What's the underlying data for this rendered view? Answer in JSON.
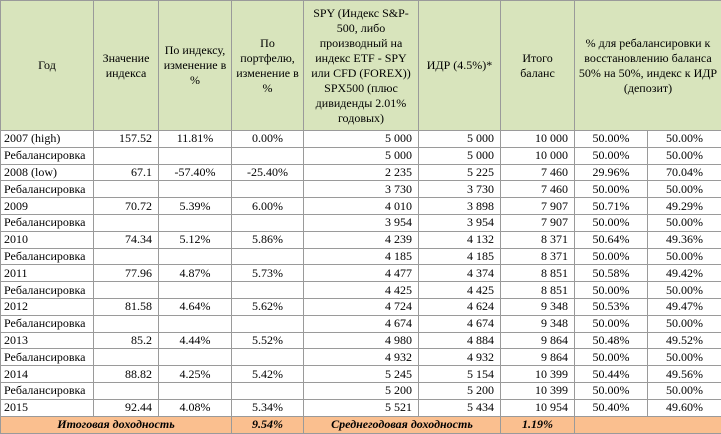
{
  "table": {
    "header": [
      "Год",
      "Значение индекса",
      "По индексу, изменение в %",
      "По портфелю, изменение в %",
      "SPY (Индекс S&P-500, либо производный на индекс ETF - SPY или CFD (FOREX)) SPX500 (плюс дивиденды 2.01% годовых)",
      "ИДР (4.5%)*",
      "Итого баланс",
      "% для ребалансировки к восстановлению баланса 50% на 50%, индекс к ИДР (депозит)"
    ],
    "rows": [
      [
        "2007 (high)",
        "157.52",
        "11.81%",
        "0.00%",
        "5 000",
        "5 000",
        "10 000",
        "50.00%",
        "50.00%"
      ],
      [
        "Ребалансировка",
        null,
        null,
        null,
        "5 000",
        "5 000",
        "10 000",
        "50.00%",
        "50.00%"
      ],
      [
        "2008 (low)",
        "67.1",
        "-57.40%",
        "-25.40%",
        "2 235",
        "5 225",
        "7 460",
        "29.96%",
        "70.04%"
      ],
      [
        "Ребалансировка",
        null,
        null,
        null,
        "3 730",
        "3 730",
        "7 460",
        "50.00%",
        "50.00%"
      ],
      [
        "2009",
        "70.72",
        "5.39%",
        "6.00%",
        "4 010",
        "3 898",
        "7 907",
        "50.71%",
        "49.29%"
      ],
      [
        "Ребалансировка",
        null,
        null,
        null,
        "3 954",
        "3 954",
        "7 907",
        "50.00%",
        "50.00%"
      ],
      [
        "2010",
        "74.34",
        "5.12%",
        "5.86%",
        "4 239",
        "4 132",
        "8 371",
        "50.64%",
        "49.36%"
      ],
      [
        "Ребалансировка",
        null,
        null,
        null,
        "4 185",
        "4 185",
        "8 371",
        "50.00%",
        "50.00%"
      ],
      [
        "2011",
        "77.96",
        "4.87%",
        "5.73%",
        "4 477",
        "4 374",
        "8 851",
        "50.58%",
        "49.42%"
      ],
      [
        "Ребалансировка",
        null,
        null,
        null,
        "4 425",
        "4 425",
        "8 851",
        "50.00%",
        "50.00%"
      ],
      [
        "2012",
        "81.58",
        "4.64%",
        "5.62%",
        "4 724",
        "4 624",
        "9 348",
        "50.53%",
        "49.47%"
      ],
      [
        "Ребалансировка",
        null,
        null,
        null,
        "4 674",
        "4 674",
        "9 348",
        "50.00%",
        "50.00%"
      ],
      [
        "2013",
        "85.2",
        "4.44%",
        "5.52%",
        "4 980",
        "4 884",
        "9 864",
        "50.48%",
        "49.52%"
      ],
      [
        "Ребалансировка",
        null,
        null,
        null,
        "4 932",
        "4 932",
        "9 864",
        "50.00%",
        "50.00%"
      ],
      [
        "2014",
        "88.82",
        "4.25%",
        "5.42%",
        "5 245",
        "5 154",
        "10 399",
        "50.44%",
        "49.56%"
      ],
      [
        "Ребалансировка",
        null,
        null,
        null,
        "5 200",
        "5 200",
        "10 399",
        "50.00%",
        "50.00%"
      ],
      [
        "2015",
        "92.44",
        "4.08%",
        "5.34%",
        "5 521",
        "5 434",
        "10 954",
        "50.40%",
        "49.60%"
      ]
    ],
    "footer": {
      "total_label": "Итоговая доходность",
      "total_value": "9.54%",
      "average_label": "Среднегодовая доходность",
      "average_value": "1.19%"
    }
  }
}
